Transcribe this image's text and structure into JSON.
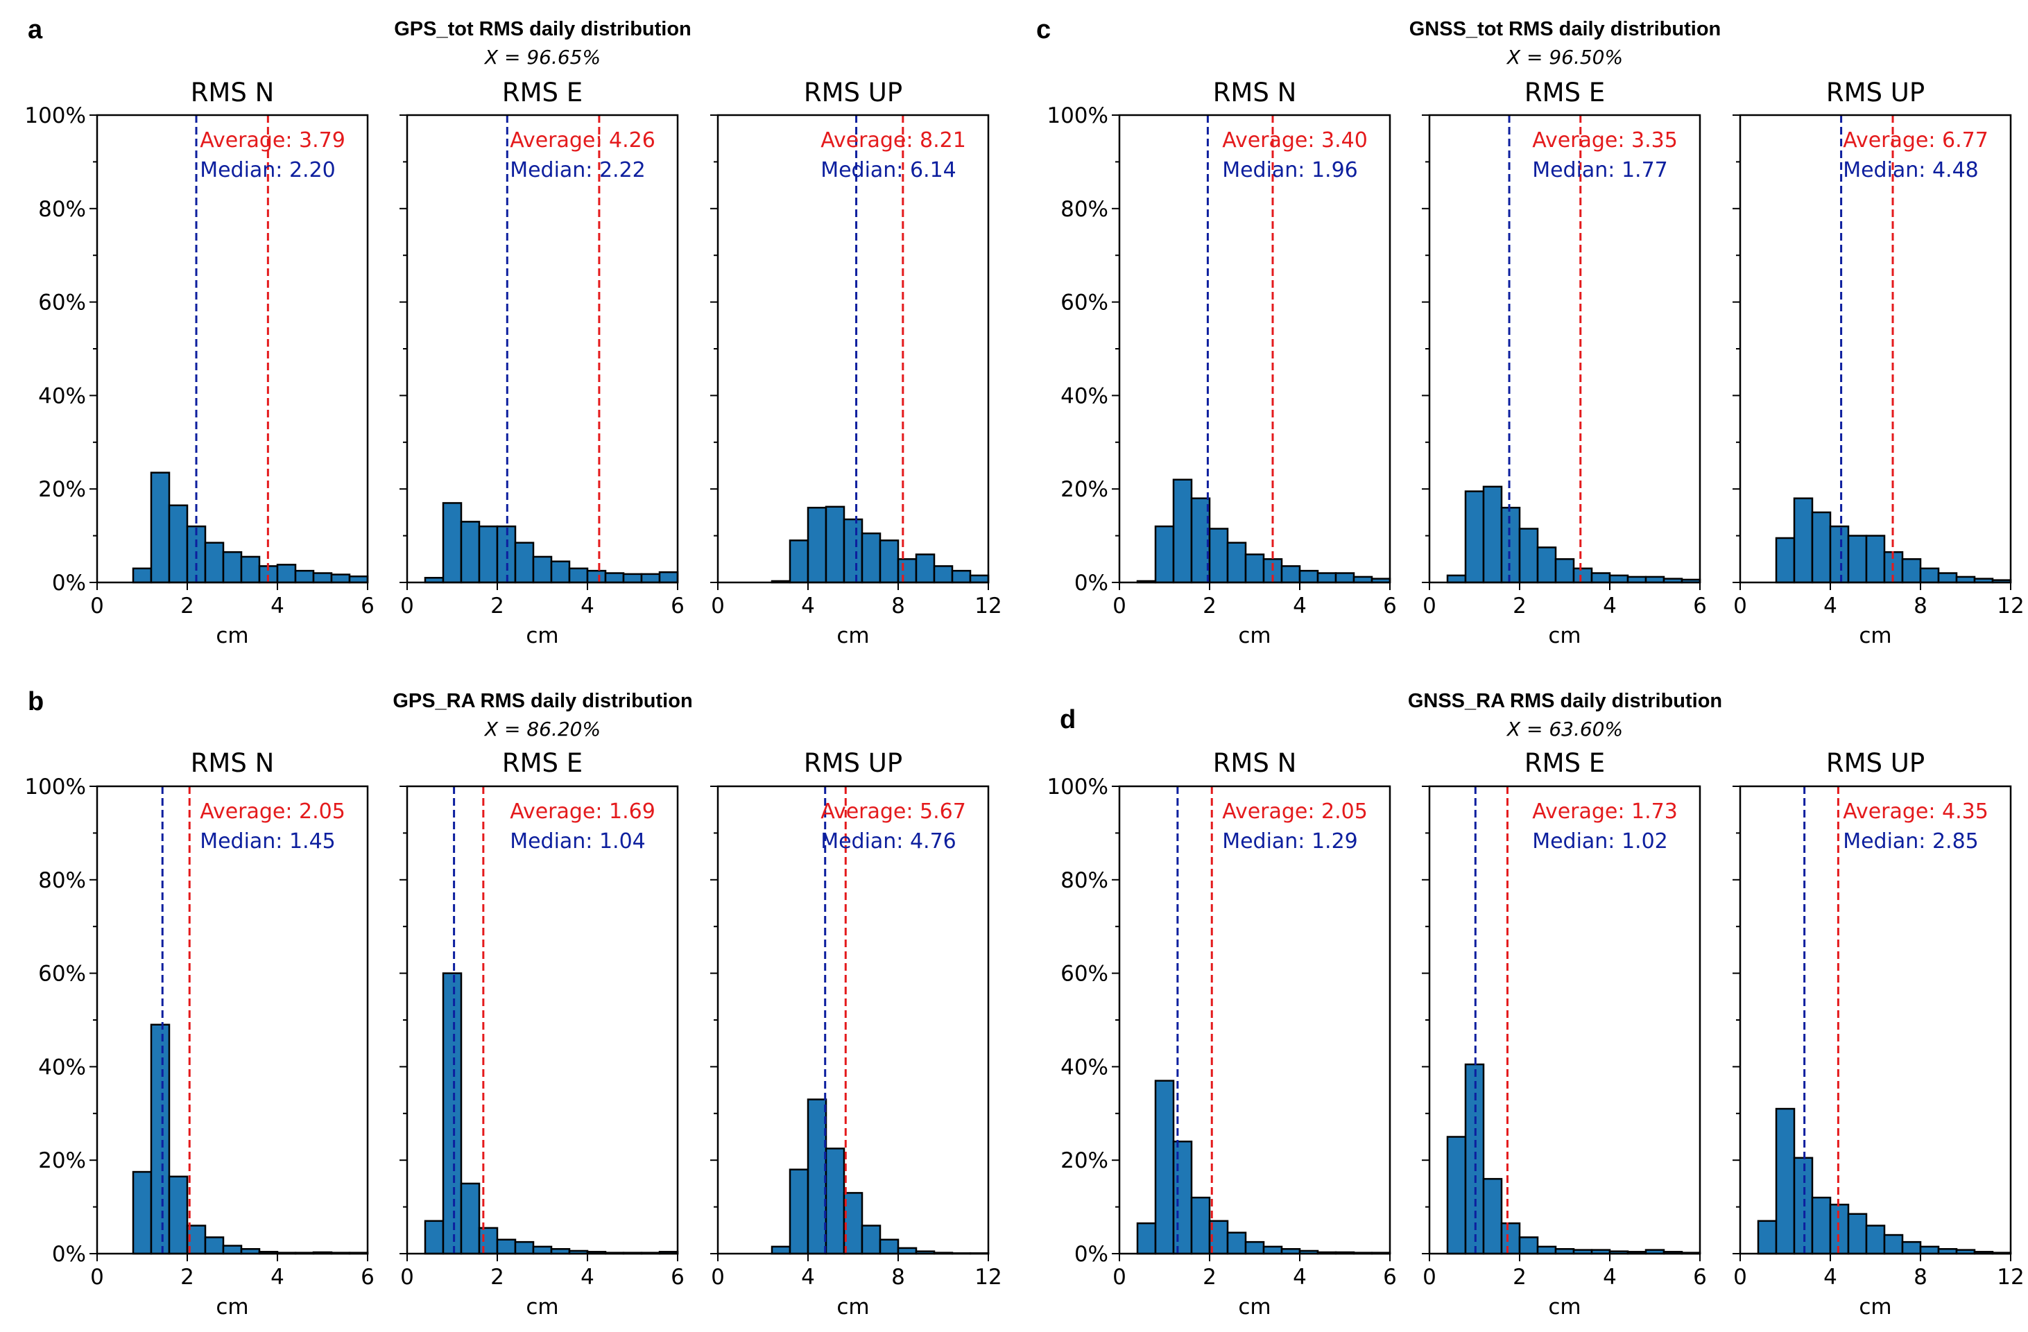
{
  "colors": {
    "bar": "#1f77b4",
    "bar_edge": "#000000",
    "average": "#e41a1c",
    "median": "#0d1f9e",
    "axis": "#000000"
  },
  "strings": {
    "average_prefix": "Average: ",
    "median_prefix": "Median: ",
    "xlabel": "cm"
  },
  "chart_data": [
    {
      "panel_letter": "a",
      "title": "GPS_tot RMS daily distribution",
      "subtitle": "X = 96.65%",
      "subplots": [
        {
          "type": "bar",
          "title": "RMS N",
          "xlim": [
            0,
            6
          ],
          "xticks": [
            0,
            2,
            4,
            6
          ],
          "ylim": [
            0,
            100
          ],
          "yticks": [
            "0%",
            "20%",
            "40%",
            "60%",
            "80%",
            "100%"
          ],
          "xlabel": "cm",
          "bin_width": 0.4,
          "bins_start": [
            0.8,
            1.2,
            1.6,
            2.0,
            2.4,
            2.8,
            3.2,
            3.6,
            4.0,
            4.4,
            4.8,
            5.2,
            5.6
          ],
          "values": [
            3,
            23.5,
            16.5,
            12,
            8.5,
            6.5,
            5.5,
            3.5,
            3.8,
            2.5,
            2,
            1.7,
            1.3
          ],
          "average": 3.79,
          "median": 2.2,
          "average_label": "3.79",
          "median_label": "2.20"
        },
        {
          "type": "bar",
          "title": "RMS E",
          "xlim": [
            0,
            6
          ],
          "xticks": [
            0,
            2,
            4,
            6
          ],
          "ylim": [
            0,
            100
          ],
          "yticks": [
            "0%",
            "20%",
            "40%",
            "60%",
            "80%",
            "100%"
          ],
          "xlabel": "cm",
          "bin_width": 0.4,
          "bins_start": [
            0.4,
            0.8,
            1.2,
            1.6,
            2.0,
            2.4,
            2.8,
            3.2,
            3.6,
            4.0,
            4.4,
            4.8,
            5.2,
            5.6
          ],
          "values": [
            1,
            17,
            13,
            12,
            12,
            8.5,
            5.5,
            4.5,
            3,
            2.5,
            2,
            1.8,
            1.8,
            2.2
          ],
          "average": 4.26,
          "median": 2.22,
          "average_label": "4.26",
          "median_label": "2.22"
        },
        {
          "type": "bar",
          "title": "RMS UP",
          "xlim": [
            0,
            12
          ],
          "xticks": [
            0,
            4,
            8,
            12
          ],
          "ylim": [
            0,
            100
          ],
          "yticks": [
            "0%",
            "20%",
            "40%",
            "60%",
            "80%",
            "100%"
          ],
          "xlabel": "cm",
          "bin_width": 0.8,
          "bins_start": [
            0.8,
            1.6,
            2.4,
            3.2,
            4.0,
            4.8,
            5.6,
            6.4,
            7.2,
            8.0,
            8.8,
            9.6,
            10.4,
            11.2
          ],
          "values": [
            0,
            0,
            0.3,
            9,
            16,
            16.2,
            13.5,
            10.5,
            9,
            5,
            6,
            3.5,
            2.5,
            1.5
          ],
          "average": 8.21,
          "median": 6.14,
          "average_label": "8.21",
          "median_label": "6.14"
        }
      ]
    },
    {
      "panel_letter": "c",
      "title": "GNSS_tot RMS daily distribution",
      "subtitle": "X = 96.50%",
      "subplots": [
        {
          "type": "bar",
          "title": "RMS N",
          "xlim": [
            0,
            6
          ],
          "xticks": [
            0,
            2,
            4,
            6
          ],
          "ylim": [
            0,
            100
          ],
          "yticks": [
            "0%",
            "20%",
            "40%",
            "60%",
            "80%",
            "100%"
          ],
          "xlabel": "cm",
          "bin_width": 0.4,
          "bins_start": [
            0.4,
            0.8,
            1.2,
            1.6,
            2.0,
            2.4,
            2.8,
            3.2,
            3.6,
            4.0,
            4.4,
            4.8,
            5.2,
            5.6
          ],
          "values": [
            0.3,
            12,
            22,
            18,
            11.5,
            8.5,
            6,
            5,
            3.5,
            2.5,
            2,
            2,
            1.2,
            0.8
          ],
          "average": 3.4,
          "median": 1.96,
          "average_label": "3.40",
          "median_label": "1.96"
        },
        {
          "type": "bar",
          "title": "RMS E",
          "xlim": [
            0,
            6
          ],
          "xticks": [
            0,
            2,
            4,
            6
          ],
          "ylim": [
            0,
            100
          ],
          "yticks": [
            "0%",
            "20%",
            "40%",
            "60%",
            "80%",
            "100%"
          ],
          "xlabel": "cm",
          "bin_width": 0.4,
          "bins_start": [
            0.4,
            0.8,
            1.2,
            1.6,
            2.0,
            2.4,
            2.8,
            3.2,
            3.6,
            4.0,
            4.4,
            4.8,
            5.2,
            5.6
          ],
          "values": [
            1.5,
            19.5,
            20.5,
            16,
            11.5,
            7.5,
            5,
            3,
            2,
            1.5,
            1.2,
            1.2,
            0.8,
            0.6
          ],
          "average": 3.35,
          "median": 1.77,
          "average_label": "3.35",
          "median_label": "1.77"
        },
        {
          "type": "bar",
          "title": "RMS UP",
          "xlim": [
            0,
            12
          ],
          "xticks": [
            0,
            4,
            8,
            12
          ],
          "ylim": [
            0,
            100
          ],
          "yticks": [
            "0%",
            "20%",
            "40%",
            "60%",
            "80%",
            "100%"
          ],
          "xlabel": "cm",
          "bin_width": 0.8,
          "bins_start": [
            0.8,
            1.6,
            2.4,
            3.2,
            4.0,
            4.8,
            5.6,
            6.4,
            7.2,
            8.0,
            8.8,
            9.6,
            10.4,
            11.2
          ],
          "values": [
            0,
            9.5,
            18,
            15,
            12,
            10,
            10,
            6.5,
            5,
            3,
            2,
            1.2,
            0.8,
            0.5
          ],
          "average": 6.77,
          "median": 4.48,
          "average_label": "6.77",
          "median_label": "4.48"
        }
      ]
    },
    {
      "panel_letter": "b",
      "title": "GPS_RA RMS daily distribution",
      "subtitle": "X = 86.20%",
      "subplots": [
        {
          "type": "bar",
          "title": "RMS N",
          "xlim": [
            0,
            6
          ],
          "xticks": [
            0,
            2,
            4,
            6
          ],
          "ylim": [
            0,
            100
          ],
          "yticks": [
            "0%",
            "20%",
            "40%",
            "60%",
            "80%",
            "100%"
          ],
          "xlabel": "cm",
          "bin_width": 0.4,
          "bins_start": [
            0.8,
            1.2,
            1.6,
            2.0,
            2.4,
            2.8,
            3.2,
            3.6,
            4.0,
            4.4,
            4.8,
            5.2,
            5.6
          ],
          "values": [
            17.5,
            49,
            16.5,
            6,
            3.5,
            1.7,
            1,
            0.4,
            0.2,
            0.2,
            0.3,
            0.2,
            0.2
          ],
          "average": 2.05,
          "median": 1.45,
          "average_label": "2.05",
          "median_label": "1.45"
        },
        {
          "type": "bar",
          "title": "RMS E",
          "xlim": [
            0,
            6
          ],
          "xticks": [
            0,
            2,
            4,
            6
          ],
          "ylim": [
            0,
            100
          ],
          "yticks": [
            "0%",
            "20%",
            "40%",
            "60%",
            "80%",
            "100%"
          ],
          "xlabel": "cm",
          "bin_width": 0.4,
          "bins_start": [
            0.4,
            0.8,
            1.2,
            1.6,
            2.0,
            2.4,
            2.8,
            3.2,
            3.6,
            4.0,
            4.4,
            4.8,
            5.2,
            5.6
          ],
          "values": [
            7,
            60,
            15,
            5.5,
            3,
            2.5,
            1.5,
            1,
            0.6,
            0.4,
            0.2,
            0.2,
            0.2,
            0.4
          ],
          "average": 1.69,
          "median": 1.04,
          "average_label": "1.69",
          "median_label": "1.04"
        },
        {
          "type": "bar",
          "title": "RMS UP",
          "xlim": [
            0,
            12
          ],
          "xticks": [
            0,
            4,
            8,
            12
          ],
          "ylim": [
            0,
            100
          ],
          "yticks": [
            "0%",
            "20%",
            "40%",
            "60%",
            "80%",
            "100%"
          ],
          "xlabel": "cm",
          "bin_width": 0.8,
          "bins_start": [
            0.8,
            1.6,
            2.4,
            3.2,
            4.0,
            4.8,
            5.6,
            6.4,
            7.2,
            8.0,
            8.8,
            9.6,
            10.4,
            11.2
          ],
          "values": [
            0,
            0,
            1.5,
            18,
            33,
            22.5,
            13,
            6,
            3,
            1.2,
            0.5,
            0.2,
            0.1,
            0.1
          ],
          "average": 5.67,
          "median": 4.76,
          "average_label": "5.67",
          "median_label": "4.76"
        }
      ]
    },
    {
      "panel_letter": "d",
      "title": "GNSS_RA RMS daily distribution",
      "subtitle": "X = 63.60%",
      "subplots": [
        {
          "type": "bar",
          "title": "RMS N",
          "xlim": [
            0,
            6
          ],
          "xticks": [
            0,
            2,
            4,
            6
          ],
          "ylim": [
            0,
            100
          ],
          "yticks": [
            "0%",
            "20%",
            "40%",
            "60%",
            "80%",
            "100%"
          ],
          "xlabel": "cm",
          "bin_width": 0.4,
          "bins_start": [
            0.4,
            0.8,
            1.2,
            1.6,
            2.0,
            2.4,
            2.8,
            3.2,
            3.6,
            4.0,
            4.4,
            4.8,
            5.2,
            5.6
          ],
          "values": [
            6.5,
            37,
            24,
            12,
            7,
            4.5,
            2.5,
            1.5,
            1,
            0.6,
            0.3,
            0.3,
            0.2,
            0.2
          ],
          "average": 2.05,
          "median": 1.29,
          "average_label": "2.05",
          "median_label": "1.29"
        },
        {
          "type": "bar",
          "title": "RMS E",
          "xlim": [
            0,
            6
          ],
          "xticks": [
            0,
            2,
            4,
            6
          ],
          "ylim": [
            0,
            100
          ],
          "yticks": [
            "0%",
            "20%",
            "40%",
            "60%",
            "80%",
            "100%"
          ],
          "xlabel": "cm",
          "bin_width": 0.4,
          "bins_start": [
            0.4,
            0.8,
            1.2,
            1.6,
            2.0,
            2.4,
            2.8,
            3.2,
            3.6,
            4.0,
            4.4,
            4.8,
            5.2,
            5.6
          ],
          "values": [
            25,
            40.5,
            16,
            6.5,
            3.5,
            1.5,
            1,
            0.8,
            0.8,
            0.5,
            0.4,
            0.8,
            0.4,
            0.2
          ],
          "average": 1.73,
          "median": 1.02,
          "average_label": "1.73",
          "median_label": "1.02"
        },
        {
          "type": "bar",
          "title": "RMS UP",
          "xlim": [
            0,
            12
          ],
          "xticks": [
            0,
            4,
            8,
            12
          ],
          "ylim": [
            0,
            100
          ],
          "yticks": [
            "0%",
            "20%",
            "40%",
            "60%",
            "80%",
            "100%"
          ],
          "xlabel": "cm",
          "bin_width": 0.8,
          "bins_start": [
            0.8,
            1.6,
            2.4,
            3.2,
            4.0,
            4.8,
            5.6,
            6.4,
            7.2,
            8.0,
            8.8,
            9.6,
            10.4,
            11.2
          ],
          "values": [
            7,
            31,
            20.5,
            12,
            10.5,
            8.5,
            6,
            4,
            2.5,
            1.5,
            1,
            0.8,
            0.4,
            0.2
          ],
          "average": 4.35,
          "median": 2.85,
          "average_label": "4.35",
          "median_label": "2.85"
        }
      ]
    }
  ]
}
